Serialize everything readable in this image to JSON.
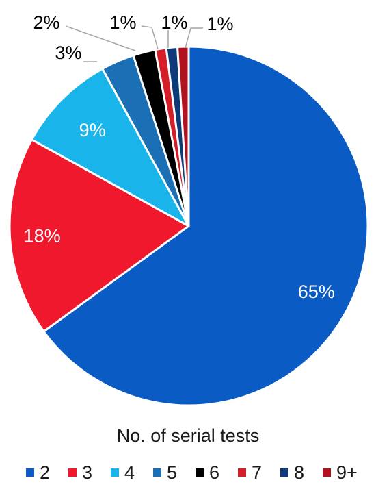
{
  "chart_data": {
    "type": "pie",
    "title": "",
    "legend_title": "No. of serial tests",
    "legend_position": "bottom",
    "categories": [
      "2",
      "3",
      "4",
      "5",
      "6",
      "7",
      "8",
      "9+"
    ],
    "values": [
      65,
      18,
      9,
      3,
      2,
      1,
      1,
      1
    ],
    "data_labels": [
      "65%",
      "18%",
      "9%",
      "3%",
      "2%",
      "1%",
      "1%",
      "1%"
    ],
    "colors": [
      "#0a5cc4",
      "#f0182d",
      "#19b4ea",
      "#1b70b5",
      "#000000",
      "#d41e2a",
      "#0d3a78",
      "#b01320"
    ],
    "label_colors": [
      "#ffffff",
      "#ffffff",
      "#ffffff",
      "#000000",
      "#000000",
      "#000000",
      "#000000",
      "#000000"
    ],
    "start_angle_deg": 0,
    "direction": "clockwise"
  }
}
